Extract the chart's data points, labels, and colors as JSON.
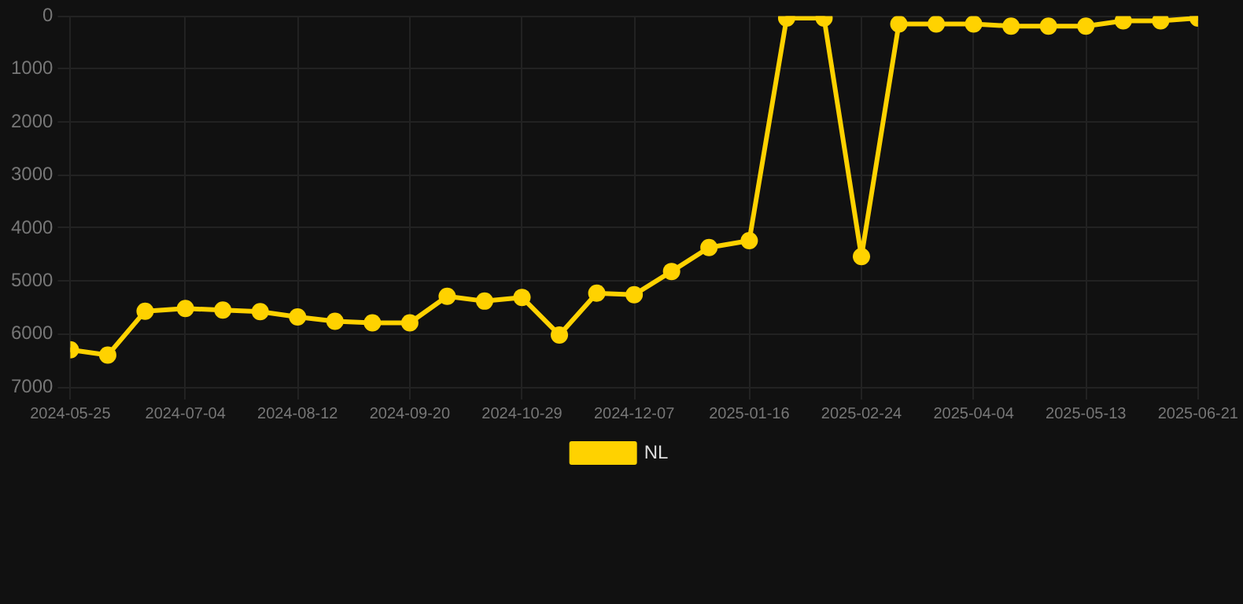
{
  "chart_data": {
    "type": "line",
    "x": [
      "2024-05-25",
      "2024-06-07",
      "2024-06-20",
      "2024-07-04",
      "2024-07-17",
      "2024-07-30",
      "2024-08-12",
      "2024-08-25",
      "2024-09-07",
      "2024-09-20",
      "2024-10-03",
      "2024-10-16",
      "2024-10-29",
      "2024-11-11",
      "2024-11-24",
      "2024-12-07",
      "2024-12-20",
      "2025-01-02",
      "2025-01-16",
      "2025-01-29",
      "2025-02-11",
      "2025-02-24",
      "2025-03-09",
      "2025-03-22",
      "2025-04-04",
      "2025-04-17",
      "2025-04-30",
      "2025-05-13",
      "2025-05-26",
      "2025-06-08",
      "2025-06-21"
    ],
    "series": [
      {
        "name": "NL",
        "color": "#ffd200",
        "values": [
          6300,
          6400,
          5570,
          5520,
          5550,
          5580,
          5680,
          5760,
          5790,
          5790,
          5290,
          5380,
          5310,
          6020,
          5230,
          5260,
          4820,
          4370,
          4240,
          40,
          40,
          4540,
          150,
          150,
          150,
          190,
          190,
          190,
          90,
          90,
          40
        ]
      }
    ],
    "ylim": [
      7000,
      0
    ],
    "yticks": [
      0,
      1000,
      2000,
      3000,
      4000,
      5000,
      6000,
      7000
    ],
    "xlim": [
      "2024-05-25",
      "2025-06-21"
    ],
    "xticks": [
      "2024-05-25",
      "2024-07-04",
      "2024-08-12",
      "2024-09-20",
      "2024-10-29",
      "2024-12-07",
      "2025-01-16",
      "2025-02-24",
      "2025-04-04",
      "2025-05-13",
      "2025-06-21"
    ],
    "grid": true,
    "legend": "bottom",
    "marker": "circle",
    "line_style": "solid"
  }
}
